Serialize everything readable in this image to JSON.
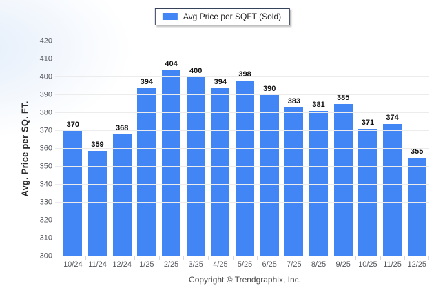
{
  "legend": {
    "label": "Avg Price per SQFT (Sold)",
    "swatch_color": "#4285f4"
  },
  "footer": {
    "copyright": "Copyright © Trendgraphix, Inc."
  },
  "chart_data": {
    "type": "bar",
    "title": "",
    "legend_label": "Avg Price per SQFT (Sold)",
    "categories": [
      "10/24",
      "11/24",
      "12/24",
      "1/25",
      "2/25",
      "3/25",
      "4/25",
      "5/25",
      "6/25",
      "7/25",
      "8/25",
      "9/25",
      "10/25",
      "11/25",
      "12/25"
    ],
    "values": [
      370,
      359,
      368,
      394,
      404,
      400,
      394,
      398,
      390,
      383,
      381,
      385,
      371,
      374,
      355
    ],
    "xlabel": "",
    "ylabel": "Avg. Price per SQ. FT.",
    "ylim": [
      300,
      420
    ],
    "ytick_step": 10,
    "bar_color": "#4285f4",
    "grid": "horizontal gridlines on",
    "legend_position": "top-center"
  }
}
